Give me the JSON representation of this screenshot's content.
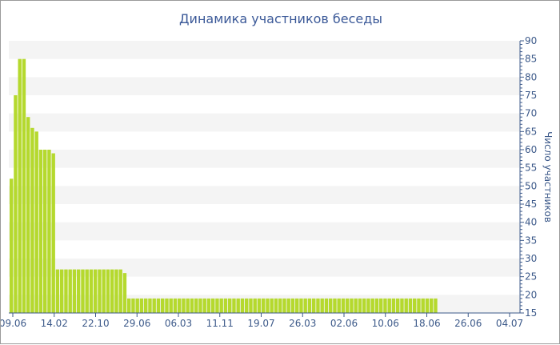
{
  "chart_data": {
    "type": "bar",
    "title": "Динамика участников беседы",
    "ylabel": "Число участников",
    "xlabel": "",
    "ylim": [
      15,
      90
    ],
    "y_ticks": [
      15,
      20,
      25,
      30,
      35,
      40,
      45,
      50,
      55,
      60,
      65,
      70,
      75,
      80,
      85,
      90
    ],
    "x_tick_labels": [
      "09.06",
      "14.02",
      "22.10",
      "29.06",
      "06.03",
      "11.11",
      "19.07",
      "26.03",
      "02.06",
      "10.06",
      "18.06",
      "26.06",
      "04.07"
    ],
    "values": [
      52,
      75,
      85,
      85,
      69,
      66,
      65,
      60,
      60,
      60,
      59,
      27,
      27,
      27,
      27,
      27,
      27,
      27,
      27,
      27,
      27,
      27,
      27,
      27,
      27,
      27,
      27,
      26,
      19,
      19,
      19,
      19,
      19,
      19,
      19,
      19,
      19,
      19,
      19,
      19,
      19,
      19,
      19,
      19,
      19,
      19,
      19,
      19,
      19,
      19,
      19,
      19,
      19,
      19,
      19,
      19,
      19,
      19,
      19,
      19,
      19,
      19,
      19,
      19,
      19,
      19,
      19,
      19,
      19,
      19,
      19,
      19,
      19,
      19,
      19,
      19,
      19,
      19,
      19,
      19,
      19,
      19,
      19,
      19,
      19,
      19,
      19,
      19,
      19,
      19,
      19,
      19,
      19,
      19,
      19,
      19,
      19,
      19,
      19,
      19,
      19,
      19
    ],
    "bar_color": "#b5d92e",
    "band_color": "#f4f4f4",
    "axis_color": "#3d5a8a",
    "grid": true
  }
}
